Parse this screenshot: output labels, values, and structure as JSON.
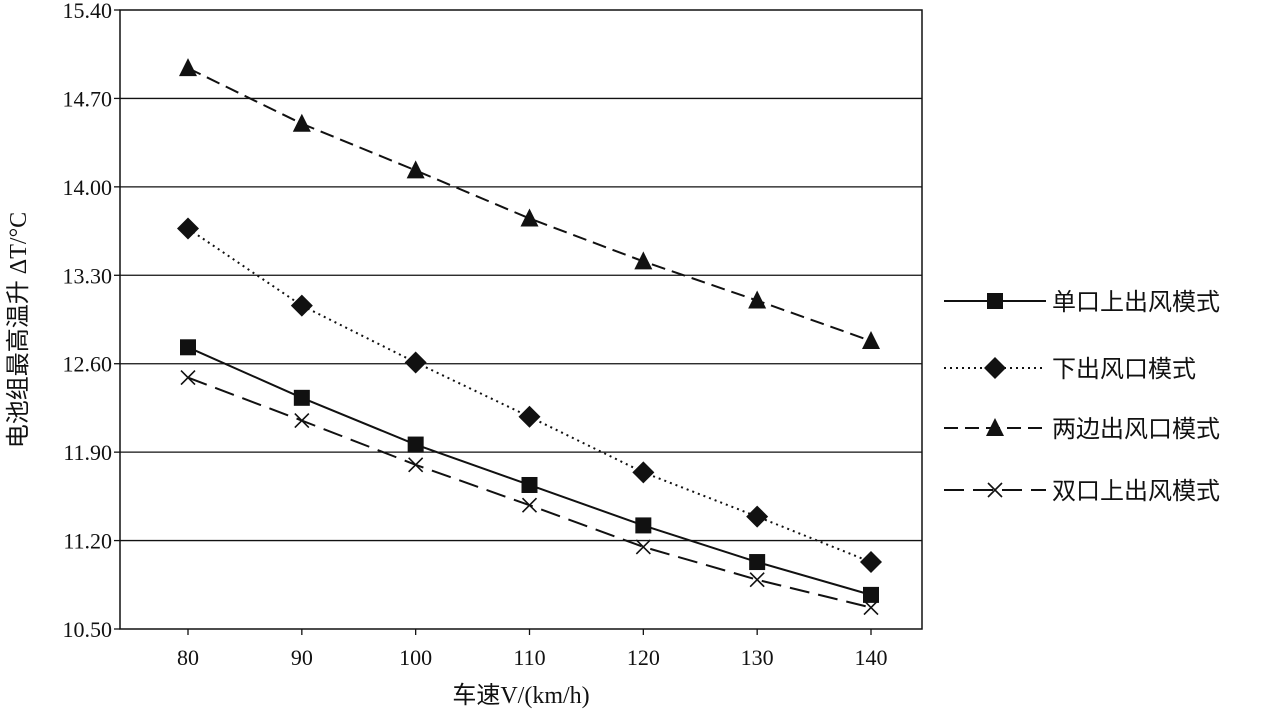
{
  "chart_data": {
    "type": "line",
    "title": "",
    "xlabel": "车速V/(km/h)",
    "ylabel": "电池组最高温升 ΔT/°C",
    "x": [
      80,
      90,
      100,
      110,
      120,
      130,
      140
    ],
    "xticks": [
      "80",
      "90",
      "100",
      "110",
      "120",
      "130",
      "140"
    ],
    "xlim": [
      75,
      145
    ],
    "ylim": [
      10.5,
      15.4
    ],
    "yticks": [
      "10.50",
      "11.20",
      "11.90",
      "12.60",
      "13.30",
      "14.00",
      "14.70",
      "15.40"
    ],
    "grid": "horizontal",
    "legend_position": "right",
    "series": [
      {
        "name": "单口上出风模式",
        "marker": "square",
        "dash": "solid",
        "values": [
          12.73,
          12.33,
          11.96,
          11.64,
          11.32,
          11.03,
          10.77
        ]
      },
      {
        "name": "下出风口模式",
        "marker": "diamond",
        "dash": "dotted",
        "values": [
          13.67,
          13.06,
          12.61,
          12.18,
          11.74,
          11.39,
          11.03
        ]
      },
      {
        "name": "两边出风口模式",
        "marker": "triangle",
        "dash": "dashed",
        "values": [
          14.94,
          14.5,
          14.13,
          13.75,
          13.41,
          13.1,
          12.78
        ]
      },
      {
        "name": "双口上出风模式",
        "marker": "cross",
        "dash": "longdash",
        "values": [
          12.49,
          12.15,
          11.8,
          11.48,
          11.15,
          10.89,
          10.67
        ]
      }
    ]
  }
}
